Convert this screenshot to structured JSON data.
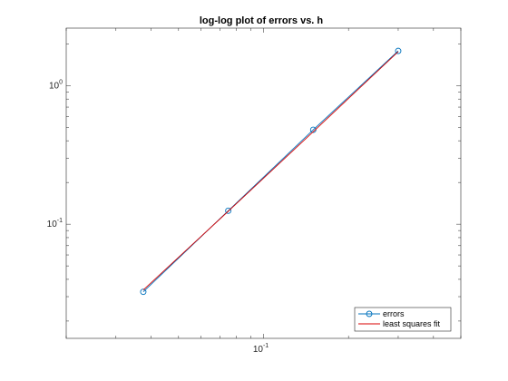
{
  "chart_data": {
    "type": "line",
    "title": "log-log plot of errors vs. h",
    "xlabel": "",
    "ylabel": "",
    "xscale": "log",
    "yscale": "log",
    "xlim": [
      0.02,
      0.5
    ],
    "ylim": [
      0.015,
      2.6
    ],
    "x_ticks": [
      {
        "value": 0.1,
        "base": "10",
        "exp": "-1"
      }
    ],
    "y_ticks": [
      {
        "value": 0.1,
        "base": "10",
        "exp": "-1"
      },
      {
        "value": 1,
        "base": "10",
        "exp": "0"
      }
    ],
    "grid": false,
    "legend_position": "bottom-right",
    "series": [
      {
        "name": "errors",
        "color": "#0072BD",
        "marker": "circle",
        "x": [
          0.0375,
          0.075,
          0.15,
          0.3
        ],
        "y": [
          0.0325,
          0.125,
          0.48,
          1.78
        ]
      },
      {
        "name": "least squares fit",
        "color": "#D90000",
        "marker": "none",
        "x": [
          0.0375,
          0.075,
          0.15,
          0.3
        ],
        "y": [
          0.0335,
          0.124,
          0.465,
          1.76
        ]
      }
    ]
  }
}
